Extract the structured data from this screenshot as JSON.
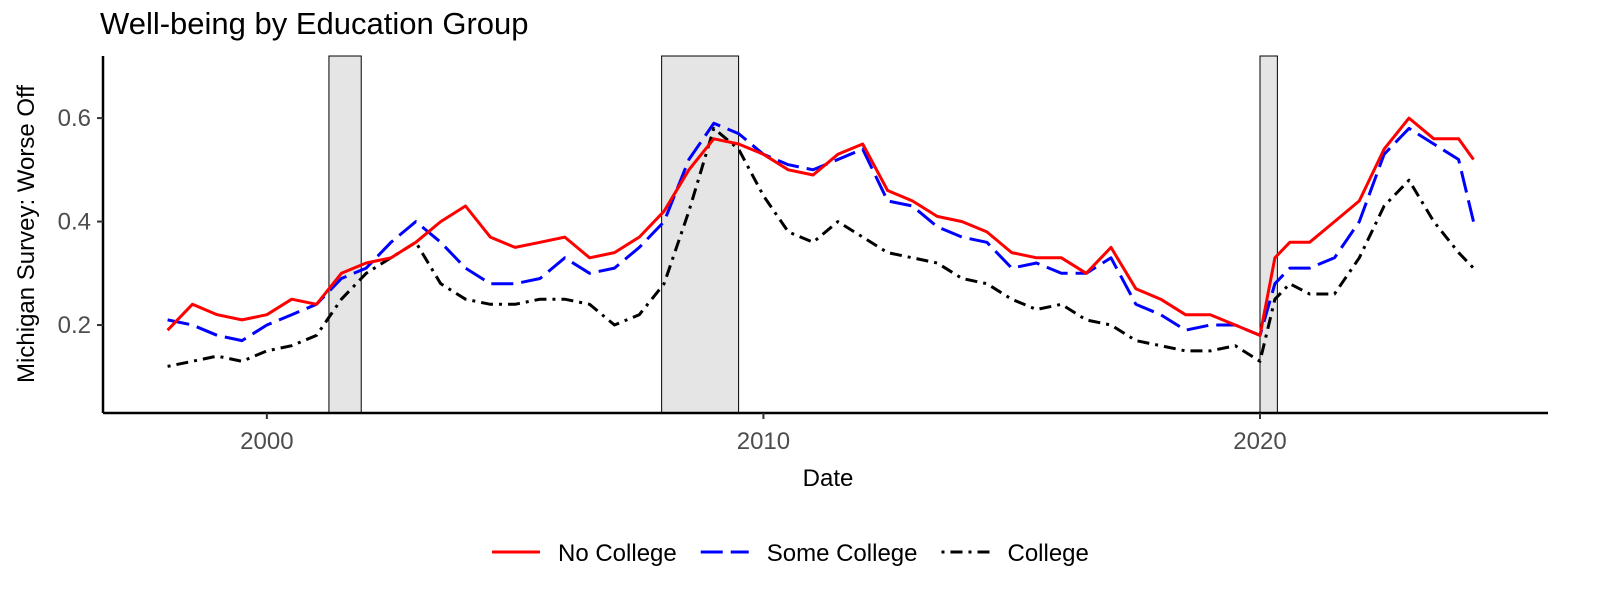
{
  "chart_data": {
    "type": "line",
    "title": "Well-being by Education Group",
    "xlabel": "Date",
    "ylabel": "Michigan Survey: Worse Off",
    "xlim": [
      1996.7,
      2025.8
    ],
    "ylim": [
      0.03,
      0.72
    ],
    "x_ticks": [
      2000,
      2010,
      2020
    ],
    "y_ticks": [
      0.2,
      0.4,
      0.6
    ],
    "x_tick_labels": [
      "2000",
      "2010",
      "2020"
    ],
    "y_tick_labels": [
      "0.2",
      "0.4",
      "0.6"
    ],
    "grid": false,
    "legend_position": "bottom",
    "recessions": [
      {
        "start": 2001.25,
        "end": 2001.9
      },
      {
        "start": 2007.95,
        "end": 2009.5
      },
      {
        "start": 2020.0,
        "end": 2020.35
      }
    ],
    "series": [
      {
        "name": "No College",
        "color": "#ff0000",
        "dash": "solid",
        "x": [
          1998.0,
          1998.5,
          1999.0,
          1999.5,
          2000.0,
          2000.5,
          2001.0,
          2001.5,
          2002.0,
          2002.5,
          2003.0,
          2003.5,
          2004.0,
          2004.5,
          2005.0,
          2005.5,
          2006.0,
          2006.5,
          2007.0,
          2007.5,
          2008.0,
          2008.5,
          2009.0,
          2009.5,
          2010.0,
          2010.5,
          2011.0,
          2011.5,
          2012.0,
          2012.5,
          2013.0,
          2013.5,
          2014.0,
          2014.5,
          2015.0,
          2015.5,
          2016.0,
          2016.5,
          2017.0,
          2017.5,
          2018.0,
          2018.5,
          2019.0,
          2019.5,
          2020.0,
          2020.3,
          2020.6,
          2021.0,
          2021.5,
          2022.0,
          2022.5,
          2023.0,
          2023.5,
          2024.0,
          2024.3
        ],
        "y": [
          0.19,
          0.24,
          0.22,
          0.21,
          0.22,
          0.25,
          0.24,
          0.3,
          0.32,
          0.33,
          0.36,
          0.4,
          0.43,
          0.37,
          0.35,
          0.36,
          0.37,
          0.33,
          0.34,
          0.37,
          0.42,
          0.5,
          0.56,
          0.55,
          0.53,
          0.5,
          0.49,
          0.53,
          0.55,
          0.46,
          0.44,
          0.41,
          0.4,
          0.38,
          0.34,
          0.33,
          0.33,
          0.3,
          0.35,
          0.27,
          0.25,
          0.22,
          0.22,
          0.2,
          0.18,
          0.33,
          0.36,
          0.36,
          0.4,
          0.44,
          0.54,
          0.6,
          0.56,
          0.56,
          0.52
        ]
      },
      {
        "name": "Some College",
        "color": "#0000ff",
        "dash": "long",
        "x": [
          1998.0,
          1998.5,
          1999.0,
          1999.5,
          2000.0,
          2000.5,
          2001.0,
          2001.5,
          2002.0,
          2002.5,
          2003.0,
          2003.5,
          2004.0,
          2004.5,
          2005.0,
          2005.5,
          2006.0,
          2006.5,
          2007.0,
          2007.5,
          2008.0,
          2008.5,
          2009.0,
          2009.5,
          2010.0,
          2010.5,
          2011.0,
          2011.5,
          2012.0,
          2012.5,
          2013.0,
          2013.5,
          2014.0,
          2014.5,
          2015.0,
          2015.5,
          2016.0,
          2016.5,
          2017.0,
          2017.5,
          2018.0,
          2018.5,
          2019.0,
          2019.5,
          2020.0,
          2020.3,
          2020.6,
          2021.0,
          2021.5,
          2022.0,
          2022.5,
          2023.0,
          2023.5,
          2024.0,
          2024.3
        ],
        "y": [
          0.21,
          0.2,
          0.18,
          0.17,
          0.2,
          0.22,
          0.24,
          0.29,
          0.31,
          0.36,
          0.4,
          0.36,
          0.31,
          0.28,
          0.28,
          0.29,
          0.33,
          0.3,
          0.31,
          0.35,
          0.4,
          0.52,
          0.59,
          0.57,
          0.53,
          0.51,
          0.5,
          0.52,
          0.54,
          0.44,
          0.43,
          0.39,
          0.37,
          0.36,
          0.31,
          0.32,
          0.3,
          0.3,
          0.33,
          0.24,
          0.22,
          0.19,
          0.2,
          0.2,
          0.18,
          0.28,
          0.31,
          0.31,
          0.33,
          0.4,
          0.53,
          0.58,
          0.55,
          0.52,
          0.4
        ]
      },
      {
        "name": "College",
        "color": "#000000",
        "dash": "dotdash",
        "x": [
          1998.0,
          1998.5,
          1999.0,
          1999.5,
          2000.0,
          2000.5,
          2001.0,
          2001.5,
          2002.0,
          2002.5,
          2003.0,
          2003.5,
          2004.0,
          2004.5,
          2005.0,
          2005.5,
          2006.0,
          2006.5,
          2007.0,
          2007.5,
          2008.0,
          2008.5,
          2009.0,
          2009.5,
          2010.0,
          2010.5,
          2011.0,
          2011.5,
          2012.0,
          2012.5,
          2013.0,
          2013.5,
          2014.0,
          2014.5,
          2015.0,
          2015.5,
          2016.0,
          2016.5,
          2017.0,
          2017.5,
          2018.0,
          2018.5,
          2019.0,
          2019.5,
          2020.0,
          2020.3,
          2020.6,
          2021.0,
          2021.5,
          2022.0,
          2022.5,
          2023.0,
          2023.5,
          2024.0,
          2024.3
        ],
        "y": [
          0.12,
          0.13,
          0.14,
          0.13,
          0.15,
          0.16,
          0.18,
          0.25,
          0.3,
          0.33,
          0.36,
          0.28,
          0.25,
          0.24,
          0.24,
          0.25,
          0.25,
          0.24,
          0.2,
          0.22,
          0.28,
          0.42,
          0.58,
          0.54,
          0.45,
          0.38,
          0.36,
          0.4,
          0.37,
          0.34,
          0.33,
          0.32,
          0.29,
          0.28,
          0.25,
          0.23,
          0.24,
          0.21,
          0.2,
          0.17,
          0.16,
          0.15,
          0.15,
          0.16,
          0.13,
          0.25,
          0.28,
          0.26,
          0.26,
          0.33,
          0.43,
          0.48,
          0.4,
          0.34,
          0.31
        ]
      }
    ]
  }
}
